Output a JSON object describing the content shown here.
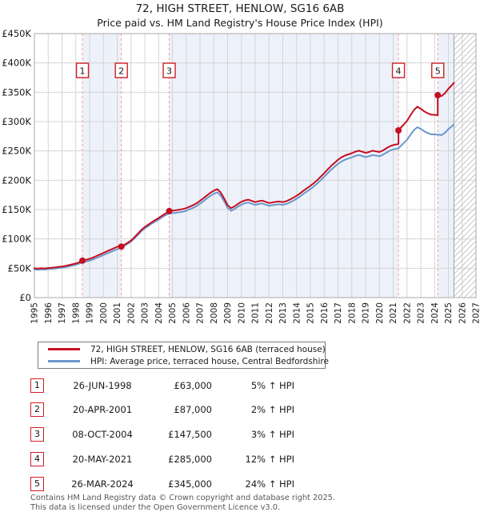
{
  "title": "72, HIGH STREET, HENLOW, SG16 6AB",
  "subtitle": "Price paid vs. HM Land Registry's House Price Index (HPI)",
  "footer": {
    "line1": "Contains HM Land Registry data © Crown copyright and database right 2025.",
    "line2": "This data is licensed under the Open Government Licence v3.0."
  },
  "chart_data": {
    "type": "line",
    "title": "72, HIGH STREET, HENLOW, SG16 6AB",
    "subtitle": "Price paid vs. HM Land Registry's House Price Index (HPI)",
    "xlabel": "",
    "ylabel": "",
    "x_range": [
      1995,
      2027
    ],
    "ylim_pounds": [
      0,
      450000
    ],
    "grid": true,
    "legend_position": "below",
    "band_color": "#edf1fa",
    "grid_color": "#d4d4d4",
    "border_color": "#a8a8a8",
    "dashed_line_color": "#f59898",
    "hatch_color": "#c6c6cе",
    "x_ticks": [
      1995,
      1996,
      1997,
      1998,
      1999,
      2000,
      2001,
      2002,
      2003,
      2004,
      2005,
      2006,
      2007,
      2008,
      2009,
      2010,
      2011,
      2012,
      2013,
      2014,
      2015,
      2016,
      2017,
      2018,
      2019,
      2020,
      2021,
      2022,
      2023,
      2024,
      2025,
      2026,
      2027
    ],
    "y_tick_values_k": [
      0,
      50,
      100,
      150,
      200,
      250,
      300,
      350,
      400,
      450
    ],
    "y_tick_labels": [
      "£0",
      "£50K",
      "£100K",
      "£150K",
      "£200K",
      "£250K",
      "£300K",
      "£350K",
      "£400K",
      "£450K"
    ],
    "bands": [
      [
        1998.48,
        2001.3
      ],
      [
        2004.77,
        2021.38
      ],
      [
        2024.23,
        2025.4
      ]
    ],
    "future_hatch": [
      2025.4,
      2027
    ],
    "series": [
      {
        "name": "72, HIGH STREET, HENLOW, SG16 6AB (terraced house)",
        "color": "#c50f22",
        "unit": "GBP thousands",
        "points": [
          [
            1995.0,
            49.9
          ],
          [
            1995.25,
            49.4
          ],
          [
            1995.5,
            50.1
          ],
          [
            1995.75,
            49.7
          ],
          [
            1996.0,
            50.4
          ],
          [
            1996.25,
            51.0
          ],
          [
            1996.5,
            51.6
          ],
          [
            1996.75,
            52.3
          ],
          [
            1997.0,
            53.0
          ],
          [
            1997.25,
            54.1
          ],
          [
            1997.5,
            55.3
          ],
          [
            1997.75,
            56.7
          ],
          [
            1998.0,
            58.2
          ],
          [
            1998.25,
            60.3
          ],
          [
            1998.48,
            63.0
          ],
          [
            1998.75,
            64.6
          ],
          [
            1999.0,
            66.2
          ],
          [
            1999.25,
            68.3
          ],
          [
            1999.5,
            70.9
          ],
          [
            1999.75,
            73.5
          ],
          [
            2000.0,
            76.1
          ],
          [
            2000.25,
            78.8
          ],
          [
            2000.5,
            81.4
          ],
          [
            2000.75,
            84.0
          ],
          [
            2001.0,
            86.6
          ],
          [
            2001.25,
            89.2
          ],
          [
            2001.3,
            87.0
          ],
          [
            2001.5,
            89.8
          ],
          [
            2001.75,
            93.3
          ],
          [
            2002.0,
            97.4
          ],
          [
            2002.25,
            103.0
          ],
          [
            2002.5,
            109.1
          ],
          [
            2002.75,
            115.3
          ],
          [
            2003.0,
            120.4
          ],
          [
            2003.25,
            124.4
          ],
          [
            2003.5,
            128.5
          ],
          [
            2003.75,
            132.1
          ],
          [
            2004.0,
            135.7
          ],
          [
            2004.25,
            139.7
          ],
          [
            2004.5,
            143.3
          ],
          [
            2004.77,
            147.5
          ],
          [
            2005.0,
            148.3
          ],
          [
            2005.25,
            148.8
          ],
          [
            2005.5,
            149.9
          ],
          [
            2005.75,
            150.9
          ],
          [
            2006.0,
            152.4
          ],
          [
            2006.25,
            155.0
          ],
          [
            2006.5,
            157.6
          ],
          [
            2006.75,
            160.7
          ],
          [
            2007.0,
            164.8
          ],
          [
            2007.25,
            169.4
          ],
          [
            2007.5,
            174.1
          ],
          [
            2007.75,
            178.7
          ],
          [
            2008.0,
            182.3
          ],
          [
            2008.25,
            184.9
          ],
          [
            2008.5,
            179.2
          ],
          [
            2008.75,
            168.9
          ],
          [
            2009.0,
            157.6
          ],
          [
            2009.25,
            152.4
          ],
          [
            2009.5,
            155.5
          ],
          [
            2009.75,
            159.7
          ],
          [
            2010.0,
            163.3
          ],
          [
            2010.25,
            165.8
          ],
          [
            2010.5,
            166.9
          ],
          [
            2010.75,
            164.8
          ],
          [
            2011.0,
            162.7
          ],
          [
            2011.25,
            164.3
          ],
          [
            2011.5,
            165.3
          ],
          [
            2011.75,
            163.3
          ],
          [
            2012.0,
            161.2
          ],
          [
            2012.25,
            162.2
          ],
          [
            2012.5,
            163.3
          ],
          [
            2012.75,
            163.8
          ],
          [
            2013.0,
            162.7
          ],
          [
            2013.25,
            164.3
          ],
          [
            2013.5,
            166.9
          ],
          [
            2013.75,
            170.0
          ],
          [
            2014.0,
            173.6
          ],
          [
            2014.25,
            177.7
          ],
          [
            2014.5,
            182.3
          ],
          [
            2014.75,
            186.4
          ],
          [
            2015.0,
            190.6
          ],
          [
            2015.25,
            195.2
          ],
          [
            2015.5,
            200.3
          ],
          [
            2015.75,
            206.0
          ],
          [
            2016.0,
            212.2
          ],
          [
            2016.25,
            218.4
          ],
          [
            2016.5,
            224.5
          ],
          [
            2016.75,
            229.7
          ],
          [
            2017.0,
            234.8
          ],
          [
            2017.25,
            239.0
          ],
          [
            2017.5,
            242.1
          ],
          [
            2017.75,
            244.1
          ],
          [
            2018.0,
            246.2
          ],
          [
            2018.25,
            248.7
          ],
          [
            2018.5,
            250.3
          ],
          [
            2018.75,
            248.7
          ],
          [
            2019.0,
            246.7
          ],
          [
            2019.25,
            248.2
          ],
          [
            2019.5,
            250.3
          ],
          [
            2019.75,
            249.3
          ],
          [
            2020.0,
            248.2
          ],
          [
            2020.25,
            250.8
          ],
          [
            2020.5,
            254.4
          ],
          [
            2020.75,
            258.0
          ],
          [
            2021.0,
            260.1
          ],
          [
            2021.38,
            262.0
          ],
          [
            2021.38,
            285.0
          ],
          [
            2021.5,
            288.4
          ],
          [
            2021.75,
            294.6
          ],
          [
            2022.0,
            301.3
          ],
          [
            2022.25,
            310.8
          ],
          [
            2022.5,
            319.8
          ],
          [
            2022.75,
            325.4
          ],
          [
            2023.0,
            322.0
          ],
          [
            2023.25,
            317.5
          ],
          [
            2023.5,
            314.2
          ],
          [
            2023.75,
            311.9
          ],
          [
            2024.0,
            311.4
          ],
          [
            2024.23,
            311.0
          ],
          [
            2024.23,
            345.0
          ],
          [
            2024.5,
            343.5
          ],
          [
            2024.75,
            348.4
          ],
          [
            2025.0,
            355.9
          ],
          [
            2025.25,
            362.1
          ],
          [
            2025.4,
            366.0
          ]
        ]
      },
      {
        "name": "HPI: Average price, terraced house, Central Bedfordshire",
        "color": "#6b97cb",
        "unit": "GBP thousands",
        "points": [
          [
            1995.0,
            48.0
          ],
          [
            1995.25,
            47.5
          ],
          [
            1995.5,
            48.2
          ],
          [
            1995.75,
            47.8
          ],
          [
            1996.0,
            48.5
          ],
          [
            1996.25,
            49.0
          ],
          [
            1996.5,
            49.6
          ],
          [
            1996.75,
            50.3
          ],
          [
            1997.0,
            51.0
          ],
          [
            1997.25,
            52.0
          ],
          [
            1997.5,
            53.2
          ],
          [
            1997.75,
            54.5
          ],
          [
            1998.0,
            56.0
          ],
          [
            1998.25,
            58.0
          ],
          [
            1998.48,
            60.0
          ],
          [
            1998.75,
            61.5
          ],
          [
            1999.0,
            63.0
          ],
          [
            1999.25,
            65.0
          ],
          [
            1999.5,
            67.5
          ],
          [
            1999.75,
            70.0
          ],
          [
            2000.0,
            72.5
          ],
          [
            2000.25,
            75.0
          ],
          [
            2000.5,
            77.5
          ],
          [
            2000.75,
            80.0
          ],
          [
            2001.0,
            82.5
          ],
          [
            2001.3,
            85.3
          ],
          [
            2001.5,
            88.0
          ],
          [
            2001.75,
            91.5
          ],
          [
            2002.0,
            95.5
          ],
          [
            2002.25,
            101.0
          ],
          [
            2002.5,
            107.0
          ],
          [
            2002.75,
            113.0
          ],
          [
            2003.0,
            118.0
          ],
          [
            2003.25,
            122.0
          ],
          [
            2003.5,
            126.0
          ],
          [
            2003.75,
            129.5
          ],
          [
            2004.0,
            133.0
          ],
          [
            2004.25,
            137.0
          ],
          [
            2004.5,
            140.5
          ],
          [
            2004.77,
            143.2
          ],
          [
            2005.0,
            144.0
          ],
          [
            2005.25,
            144.5
          ],
          [
            2005.5,
            145.5
          ],
          [
            2005.75,
            146.5
          ],
          [
            2006.0,
            148.0
          ],
          [
            2006.25,
            150.5
          ],
          [
            2006.5,
            153.0
          ],
          [
            2006.75,
            156.0
          ],
          [
            2007.0,
            160.0
          ],
          [
            2007.25,
            164.5
          ],
          [
            2007.5,
            169.0
          ],
          [
            2007.75,
            173.5
          ],
          [
            2008.0,
            177.0
          ],
          [
            2008.25,
            179.5
          ],
          [
            2008.5,
            174.0
          ],
          [
            2008.75,
            164.0
          ],
          [
            2009.0,
            153.0
          ],
          [
            2009.25,
            148.0
          ],
          [
            2009.5,
            151.0
          ],
          [
            2009.75,
            155.0
          ],
          [
            2010.0,
            158.5
          ],
          [
            2010.25,
            161.0
          ],
          [
            2010.5,
            162.0
          ],
          [
            2010.75,
            160.0
          ],
          [
            2011.0,
            158.0
          ],
          [
            2011.25,
            159.5
          ],
          [
            2011.5,
            160.5
          ],
          [
            2011.75,
            158.5
          ],
          [
            2012.0,
            156.5
          ],
          [
            2012.25,
            157.5
          ],
          [
            2012.5,
            158.5
          ],
          [
            2012.75,
            159.0
          ],
          [
            2013.0,
            158.0
          ],
          [
            2013.25,
            159.5
          ],
          [
            2013.5,
            162.0
          ],
          [
            2013.75,
            165.0
          ],
          [
            2014.0,
            168.5
          ],
          [
            2014.25,
            172.5
          ],
          [
            2014.5,
            177.0
          ],
          [
            2014.75,
            181.0
          ],
          [
            2015.0,
            185.0
          ],
          [
            2015.25,
            189.5
          ],
          [
            2015.5,
            194.5
          ],
          [
            2015.75,
            200.0
          ],
          [
            2016.0,
            206.0
          ],
          [
            2016.25,
            212.0
          ],
          [
            2016.5,
            218.0
          ],
          [
            2016.75,
            223.0
          ],
          [
            2017.0,
            228.0
          ],
          [
            2017.25,
            232.0
          ],
          [
            2017.5,
            235.0
          ],
          [
            2017.75,
            237.0
          ],
          [
            2018.0,
            239.0
          ],
          [
            2018.25,
            241.5
          ],
          [
            2018.5,
            243.0
          ],
          [
            2018.75,
            241.5
          ],
          [
            2019.0,
            239.5
          ],
          [
            2019.25,
            241.0
          ],
          [
            2019.5,
            243.0
          ],
          [
            2019.75,
            242.0
          ],
          [
            2020.0,
            241.0
          ],
          [
            2020.25,
            243.5
          ],
          [
            2020.5,
            247.0
          ],
          [
            2020.75,
            250.5
          ],
          [
            2021.0,
            252.5
          ],
          [
            2021.38,
            254.5
          ],
          [
            2021.5,
            257.5
          ],
          [
            2021.75,
            263.0
          ],
          [
            2022.0,
            269.0
          ],
          [
            2022.25,
            277.5
          ],
          [
            2022.5,
            285.5
          ],
          [
            2022.75,
            290.5
          ],
          [
            2023.0,
            287.5
          ],
          [
            2023.25,
            283.5
          ],
          [
            2023.5,
            280.5
          ],
          [
            2023.75,
            278.5
          ],
          [
            2024.0,
            278.0
          ],
          [
            2024.23,
            277.8
          ],
          [
            2024.5,
            277.0
          ],
          [
            2024.75,
            281.0
          ],
          [
            2025.0,
            287.0
          ],
          [
            2025.25,
            292.0
          ],
          [
            2025.4,
            295.0
          ]
        ]
      }
    ],
    "sales": [
      {
        "n": "1",
        "date": "26-JUN-1998",
        "price": "£63,000",
        "pct": "5% ↑ HPI",
        "x": 1998.48,
        "value_k": 63
      },
      {
        "n": "2",
        "date": "20-APR-2001",
        "price": "£87,000",
        "pct": "2% ↑ HPI",
        "x": 2001.3,
        "value_k": 87
      },
      {
        "n": "3",
        "date": "08-OCT-2004",
        "price": "£147,500",
        "pct": "3% ↑ HPI",
        "x": 2004.77,
        "value_k": 147.5
      },
      {
        "n": "4",
        "date": "20-MAY-2021",
        "price": "£285,000",
        "pct": "12% ↑ HPI",
        "x": 2021.38,
        "value_k": 285
      },
      {
        "n": "5",
        "date": "26-MAR-2024",
        "price": "£345,000",
        "pct": "24% ↑ HPI",
        "x": 2024.23,
        "value_k": 345
      }
    ]
  }
}
